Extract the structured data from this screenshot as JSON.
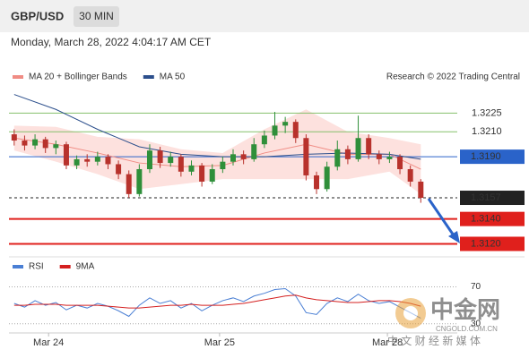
{
  "header": {
    "symbol": "GBP/USD",
    "interval": "30 MIN",
    "datetime": "Monday, March 28, 2022 4:04:17 AM CET"
  },
  "watermark": {
    "logo": "中金网",
    "domain": "CNGOLD.COM.CN",
    "tagline": "中 文 财 经 新 媒 体"
  },
  "chart_data": [
    {
      "type": "candlestick",
      "credit": "Research © 2022 Trading Central",
      "up_color": "#2f8f3a",
      "down_color": "#b8322c",
      "ohlc": [
        [
          1.3208,
          1.3212,
          1.3199,
          1.3203
        ],
        [
          1.3203,
          1.3207,
          1.3195,
          1.3199
        ],
        [
          1.3199,
          1.3208,
          1.3196,
          1.3204
        ],
        [
          1.3204,
          1.3206,
          1.3193,
          1.3197
        ],
        [
          1.3197,
          1.3203,
          1.3192,
          1.32
        ],
        [
          1.32,
          1.3202,
          1.318,
          1.3183
        ],
        [
          1.3183,
          1.3191,
          1.318,
          1.3188
        ],
        [
          1.3188,
          1.3192,
          1.3182,
          1.3186
        ],
        [
          1.3186,
          1.3194,
          1.3183,
          1.319
        ],
        [
          1.319,
          1.3192,
          1.318,
          1.3184
        ],
        [
          1.3184,
          1.3187,
          1.3172,
          1.3176
        ],
        [
          1.3176,
          1.3179,
          1.3157,
          1.316
        ],
        [
          1.316,
          1.3184,
          1.3158,
          1.318
        ],
        [
          1.318,
          1.32,
          1.3177,
          1.3195
        ],
        [
          1.3195,
          1.3198,
          1.3181,
          1.3185
        ],
        [
          1.3185,
          1.3194,
          1.3182,
          1.319
        ],
        [
          1.319,
          1.3192,
          1.3174,
          1.3178
        ],
        [
          1.3178,
          1.3187,
          1.3175,
          1.3183
        ],
        [
          1.3183,
          1.3185,
          1.3166,
          1.317
        ],
        [
          1.317,
          1.3184,
          1.3168,
          1.318
        ],
        [
          1.318,
          1.319,
          1.3177,
          1.3186
        ],
        [
          1.3186,
          1.3196,
          1.3183,
          1.3192
        ],
        [
          1.3192,
          1.3195,
          1.3184,
          1.3188
        ],
        [
          1.3188,
          1.3205,
          1.3186,
          1.32
        ],
        [
          1.32,
          1.3211,
          1.3197,
          1.3207
        ],
        [
          1.3207,
          1.3226,
          1.3204,
          1.3215
        ],
        [
          1.3215,
          1.3222,
          1.3209,
          1.3218
        ],
        [
          1.3218,
          1.322,
          1.3201,
          1.3205
        ],
        [
          1.3205,
          1.3208,
          1.3171,
          1.3175
        ],
        [
          1.3175,
          1.3178,
          1.316,
          1.3164
        ],
        [
          1.3164,
          1.3186,
          1.3162,
          1.3182
        ],
        [
          1.3182,
          1.3203,
          1.3179,
          1.3196
        ],
        [
          1.3196,
          1.3199,
          1.3184,
          1.3188
        ],
        [
          1.3188,
          1.3223,
          1.3186,
          1.3205
        ],
        [
          1.3205,
          1.3208,
          1.3188,
          1.3192
        ],
        [
          1.3192,
          1.3195,
          1.3184,
          1.3188
        ],
        [
          1.3188,
          1.3194,
          1.3185,
          1.319
        ],
        [
          1.319,
          1.3192,
          1.3176,
          1.318
        ],
        [
          1.318,
          1.3183,
          1.3166,
          1.317
        ],
        [
          1.317,
          1.3172,
          1.3153,
          1.3157
        ]
      ],
      "overlay_x": [
        0,
        4,
        8,
        12,
        16,
        20,
        24,
        28,
        32,
        36,
        39
      ],
      "series": [
        {
          "name": "MA 20 + Bollinger Bands",
          "color": "#f08c84",
          "band_color": "#fde1de",
          "values": [
            1.3205,
            1.32,
            1.3193,
            1.3185,
            1.3182,
            1.3183,
            1.3193,
            1.32,
            1.3192,
            1.3192,
            1.318
          ],
          "upper": [
            1.3215,
            1.3214,
            1.3206,
            1.3204,
            1.3196,
            1.3193,
            1.3212,
            1.3228,
            1.321,
            1.3205,
            1.32
          ],
          "lower": [
            1.3195,
            1.3186,
            1.3176,
            1.3164,
            1.3168,
            1.3172,
            1.3172,
            1.3172,
            1.3172,
            1.3178,
            1.316
          ]
        },
        {
          "name": "MA 50",
          "color": "#2c4f8c",
          "values": [
            1.324,
            1.3228,
            1.3212,
            1.3198,
            1.3192,
            1.319,
            1.319,
            1.3192,
            1.3193,
            1.3192,
            1.3188
          ]
        }
      ],
      "levels": [
        {
          "value": 1.3225,
          "label": "1.3225",
          "color": "#86c06c",
          "text_color": "#4f9e33",
          "boxed": false,
          "dashed": false
        },
        {
          "value": 1.321,
          "label": "1.3210",
          "color": "#86c06c",
          "text_color": "#4f9e33",
          "boxed": false,
          "dashed": false
        },
        {
          "value": 1.319,
          "label": "1.3190",
          "color": "#2a63c9",
          "text_color": "#ffffff",
          "boxed": true,
          "dashed": false
        },
        {
          "value": 1.3157,
          "label": "1.3157",
          "color": "#222222",
          "text_color": "#ffffff",
          "boxed": true,
          "dashed": true
        },
        {
          "value": 1.314,
          "label": "1.3140",
          "color": "#e0201c",
          "text_color": "#ffffff",
          "boxed": true,
          "dashed": false
        },
        {
          "value": 1.312,
          "label": "1.3120",
          "color": "#e0201c",
          "text_color": "#ffffff",
          "boxed": true,
          "dashed": false
        }
      ],
      "xlim": [
        -0.5,
        42.5
      ],
      "ylim": [
        1.3111,
        1.3244
      ]
    },
    {
      "type": "line",
      "series": [
        {
          "name": "RSI",
          "color": "#4a7fd4",
          "values": [
            52,
            48,
            55,
            50,
            53,
            45,
            50,
            47,
            52,
            49,
            44,
            38,
            50,
            58,
            52,
            55,
            47,
            52,
            44,
            50,
            55,
            58,
            54,
            60,
            63,
            67,
            68,
            60,
            42,
            40,
            52,
            58,
            54,
            62,
            55,
            52,
            54,
            48,
            42,
            36
          ]
        },
        {
          "name": "9MA",
          "color": "#d42020",
          "values": [
            50,
            50,
            51,
            51,
            51,
            50,
            50,
            50,
            50,
            49,
            48,
            47,
            47,
            48,
            49,
            50,
            50,
            51,
            50,
            50,
            50,
            51,
            52,
            54,
            56,
            58,
            60,
            61,
            58,
            56,
            55,
            54,
            53,
            53,
            54,
            55,
            55,
            54,
            52,
            49
          ]
        }
      ],
      "xlim": [
        -0.5,
        42.5
      ],
      "ylim": [
        20,
        85
      ],
      "yticks": [
        30,
        70
      ],
      "xticks": [
        {
          "value": 3.3,
          "label": "Mar 24"
        },
        {
          "value": 19.7,
          "label": "Mar 25"
        },
        {
          "value": 35.8,
          "label": "Mar 28"
        }
      ]
    }
  ]
}
